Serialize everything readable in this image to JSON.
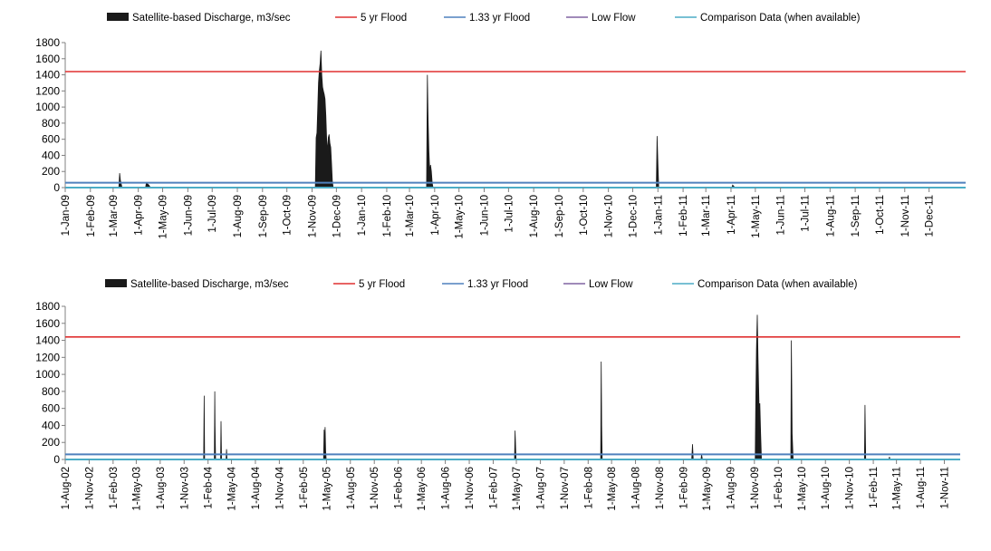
{
  "chart_data": [
    {
      "type": "area",
      "legend": {
        "placement": "top",
        "entries": [
          {
            "label": "Satellite-based Discharge, m3/sec",
            "color": "#1a1a1a",
            "kind": "area"
          },
          {
            "label": "5 yr Flood",
            "color": "#e03030",
            "kind": "line"
          },
          {
            "label": "1.33 yr Flood",
            "color": "#4f81bd",
            "kind": "line"
          },
          {
            "label": "Low Flow",
            "color": "#8064a2",
            "kind": "line"
          },
          {
            "label": "Comparison Data (when available)",
            "color": "#4bacc6",
            "kind": "line"
          }
        ]
      },
      "ylim": [
        0,
        1800
      ],
      "yticks": [
        "0",
        "200",
        "400",
        "600",
        "800",
        "1000",
        "1200",
        "1400",
        "1600",
        "1800"
      ],
      "xlim": [
        "2009-01-01",
        "2012-01-15"
      ],
      "xticks": [
        "1-Jan-09",
        "1-Feb-09",
        "1-Mar-09",
        "1-Apr-09",
        "1-May-09",
        "1-Jun-09",
        "1-Jul-09",
        "1-Aug-09",
        "1-Sep-09",
        "1-Oct-09",
        "1-Nov-09",
        "1-Dec-09",
        "1-Jan-10",
        "1-Feb-10",
        "1-Mar-10",
        "1-Apr-10",
        "1-May-10",
        "1-Jun-10",
        "1-Jul-10",
        "1-Aug-10",
        "1-Sep-10",
        "1-Oct-10",
        "1-Nov-10",
        "1-Dec-10",
        "1-Jan-11",
        "1-Feb-11",
        "1-Mar-11",
        "1-Apr-11",
        "1-May-11",
        "1-Jun-11",
        "1-Jul-11",
        "1-Aug-11",
        "1-Sep-11",
        "1-Oct-11",
        "1-Nov-11",
        "1-Dec-11"
      ],
      "reference_lines": {
        "flood_5yr": 1440,
        "flood_1_33yr": 60,
        "low_flow": 0
      },
      "discharge": [
        [
          "2009-01-01",
          0
        ],
        [
          "2009-03-08",
          0
        ],
        [
          "2009-03-09",
          180
        ],
        [
          "2009-03-10",
          90
        ],
        [
          "2009-03-12",
          0
        ],
        [
          "2009-04-10",
          0
        ],
        [
          "2009-04-11",
          60
        ],
        [
          "2009-04-14",
          30
        ],
        [
          "2009-04-16",
          0
        ],
        [
          "2009-11-05",
          0
        ],
        [
          "2009-11-06",
          620
        ],
        [
          "2009-11-07",
          680
        ],
        [
          "2009-11-08",
          1000
        ],
        [
          "2009-11-09",
          1300
        ],
        [
          "2009-11-10",
          1450
        ],
        [
          "2009-11-11",
          1540
        ],
        [
          "2009-11-12",
          1700
        ],
        [
          "2009-11-13",
          1400
        ],
        [
          "2009-11-14",
          1250
        ],
        [
          "2009-11-15",
          1200
        ],
        [
          "2009-11-16",
          1160
        ],
        [
          "2009-11-17",
          1100
        ],
        [
          "2009-11-18",
          900
        ],
        [
          "2009-11-19",
          600
        ],
        [
          "2009-11-20",
          450
        ],
        [
          "2009-11-21",
          620
        ],
        [
          "2009-11-22",
          660
        ],
        [
          "2009-11-23",
          550
        ],
        [
          "2009-11-24",
          500
        ],
        [
          "2009-11-25",
          300
        ],
        [
          "2009-11-26",
          80
        ],
        [
          "2009-11-27",
          0
        ],
        [
          "2010-03-22",
          0
        ],
        [
          "2010-03-23",
          1400
        ],
        [
          "2010-03-24",
          850
        ],
        [
          "2010-03-25",
          450
        ],
        [
          "2010-03-26",
          200
        ],
        [
          "2010-03-27",
          280
        ],
        [
          "2010-03-28",
          200
        ],
        [
          "2010-03-29",
          60
        ],
        [
          "2010-03-30",
          0
        ],
        [
          "2010-12-30",
          0
        ],
        [
          "2010-12-31",
          640
        ],
        [
          "2011-01-01",
          300
        ],
        [
          "2011-01-02",
          0
        ],
        [
          "2011-04-02",
          0
        ],
        [
          "2011-04-03",
          30
        ],
        [
          "2011-04-05",
          10
        ],
        [
          "2011-04-06",
          0
        ],
        [
          "2012-01-15",
          0
        ]
      ]
    },
    {
      "type": "area",
      "legend": {
        "placement": "top",
        "entries": [
          {
            "label": "Satellite-based Discharge, m3/sec",
            "color": "#1a1a1a",
            "kind": "area"
          },
          {
            "label": "5 yr Flood",
            "color": "#e03030",
            "kind": "line"
          },
          {
            "label": "1.33 yr Flood",
            "color": "#4f81bd",
            "kind": "line"
          },
          {
            "label": "Low Flow",
            "color": "#8064a2",
            "kind": "line"
          },
          {
            "label": "Comparison Data (when available)",
            "color": "#4bacc6",
            "kind": "line"
          }
        ]
      },
      "ylim": [
        0,
        1800
      ],
      "yticks": [
        "0",
        "200",
        "400",
        "600",
        "800",
        "1000",
        "1200",
        "1400",
        "1600",
        "1800"
      ],
      "xlim": [
        "2002-08-01",
        "2012-01-01"
      ],
      "xticks": [
        "1-Aug-02",
        "1-Nov-02",
        "1-Feb-03",
        "1-May-03",
        "1-Aug-03",
        "1-Nov-03",
        "1-Feb-04",
        "1-May-04",
        "1-Aug-04",
        "1-Nov-04",
        "1-Feb-05",
        "1-May-05",
        "1-Aug-05",
        "1-Nov-05",
        "1-Feb-06",
        "1-May-06",
        "1-Aug-06",
        "1-Nov-06",
        "1-Feb-07",
        "1-May-07",
        "1-Aug-07",
        "1-Nov-07",
        "1-Feb-08",
        "1-May-08",
        "1-Aug-08",
        "1-Nov-08",
        "1-Feb-09",
        "1-May-09",
        "1-Aug-09",
        "1-Nov-09",
        "1-Feb-10",
        "1-May-10",
        "1-Aug-10",
        "1-Nov-10",
        "1-Feb-11",
        "1-May-11",
        "1-Aug-11",
        "1-Nov-11"
      ],
      "reference_lines": {
        "flood_5yr": 1440,
        "flood_1_33yr": 60,
        "low_flow": 0
      },
      "discharge": [
        [
          "2002-08-01",
          0
        ],
        [
          "2004-01-15",
          0
        ],
        [
          "2004-01-17",
          750
        ],
        [
          "2004-01-19",
          0
        ],
        [
          "2004-02-25",
          0
        ],
        [
          "2004-02-27",
          800
        ],
        [
          "2004-02-28",
          400
        ],
        [
          "2004-03-01",
          0
        ],
        [
          "2004-03-20",
          0
        ],
        [
          "2004-03-22",
          450
        ],
        [
          "2004-03-24",
          0
        ],
        [
          "2004-04-10",
          0
        ],
        [
          "2004-04-12",
          120
        ],
        [
          "2004-04-14",
          0
        ],
        [
          "2005-04-20",
          0
        ],
        [
          "2005-04-22",
          350
        ],
        [
          "2005-04-24",
          200
        ],
        [
          "2005-04-26",
          380
        ],
        [
          "2005-04-28",
          100
        ],
        [
          "2005-04-30",
          0
        ],
        [
          "2007-04-24",
          0
        ],
        [
          "2007-04-26",
          340
        ],
        [
          "2007-04-28",
          150
        ],
        [
          "2007-04-30",
          0
        ],
        [
          "2008-03-20",
          0
        ],
        [
          "2008-03-22",
          1150
        ],
        [
          "2008-03-24",
          400
        ],
        [
          "2008-03-26",
          0
        ],
        [
          "2009-03-05",
          0
        ],
        [
          "2009-03-08",
          180
        ],
        [
          "2009-03-11",
          0
        ],
        [
          "2009-04-10",
          0
        ],
        [
          "2009-04-12",
          60
        ],
        [
          "2009-04-15",
          0
        ],
        [
          "2009-11-04",
          0
        ],
        [
          "2009-11-06",
          650
        ],
        [
          "2009-11-09",
          1300
        ],
        [
          "2009-11-12",
          1700
        ],
        [
          "2009-11-15",
          1200
        ],
        [
          "2009-11-19",
          600
        ],
        [
          "2009-11-22",
          660
        ],
        [
          "2009-11-25",
          300
        ],
        [
          "2009-11-28",
          0
        ],
        [
          "2010-03-21",
          0
        ],
        [
          "2010-03-23",
          1400
        ],
        [
          "2010-03-26",
          300
        ],
        [
          "2010-03-30",
          0
        ],
        [
          "2010-12-29",
          0
        ],
        [
          "2010-12-31",
          640
        ],
        [
          "2011-01-03",
          0
        ],
        [
          "2011-04-02",
          0
        ],
        [
          "2011-04-04",
          30
        ],
        [
          "2011-04-06",
          0
        ],
        [
          "2012-01-01",
          0
        ]
      ]
    }
  ]
}
